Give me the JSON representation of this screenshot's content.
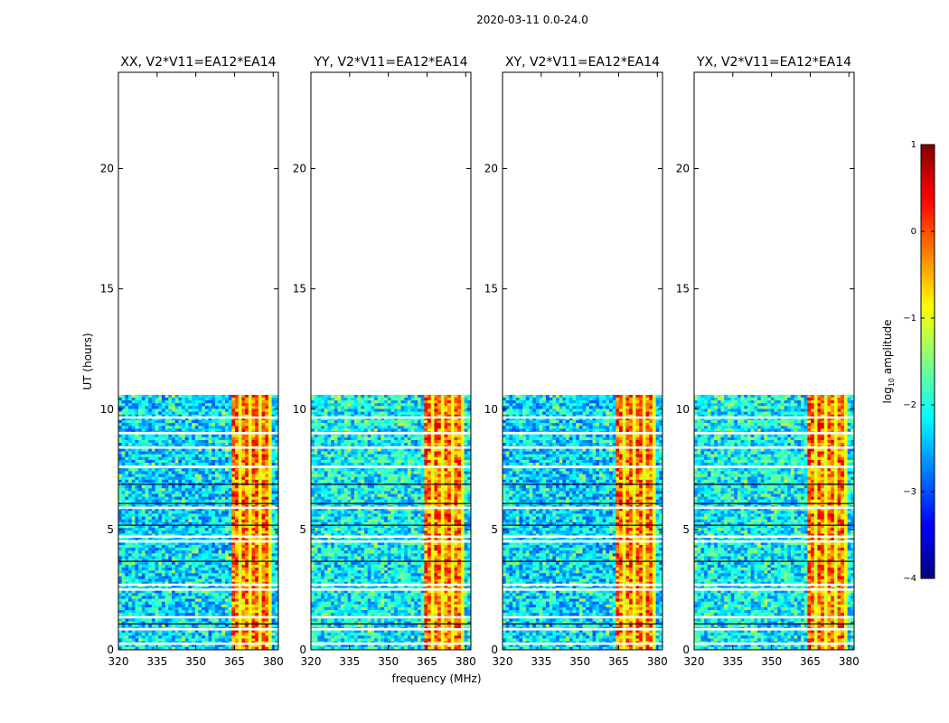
{
  "chart_data": {
    "type": "heatmap",
    "title": "2020-03-11 0.0-24.0",
    "xlabel": "frequency (MHz)",
    "ylabel": "UT (hours)",
    "xlim": [
      320,
      382
    ],
    "ylim": [
      0,
      24
    ],
    "xticks": [
      320,
      335,
      350,
      365,
      380
    ],
    "yticks": [
      0,
      5,
      10,
      15,
      20
    ],
    "data_extent_hours": [
      0,
      10.6
    ],
    "rfi_band_mhz": [
      364,
      379
    ],
    "panels": [
      {
        "title": "XX, V2*V11=EA12*EA14"
      },
      {
        "title": "YY, V2*V11=EA12*EA14"
      },
      {
        "title": "XY, V2*V11=EA12*EA14"
      },
      {
        "title": "YX, V2*V11=EA12*EA14"
      }
    ],
    "colorbar": {
      "label": "log10 amplitude",
      "label_main": "log",
      "label_sub": "10",
      "label_rest": " amplitude",
      "range": [
        -4,
        1
      ],
      "ticks": [
        1,
        0,
        -1,
        -2,
        -3,
        -4
      ],
      "tick_labels": [
        "1",
        "0",
        "−1",
        "−2",
        "−3",
        "−4"
      ],
      "colormap": "jet",
      "colors": [
        "#00007f",
        "#0000ff",
        "#007fff",
        "#00ffff",
        "#7fff7f",
        "#ffff00",
        "#ff7f00",
        "#ff0000",
        "#7f0000"
      ]
    }
  }
}
